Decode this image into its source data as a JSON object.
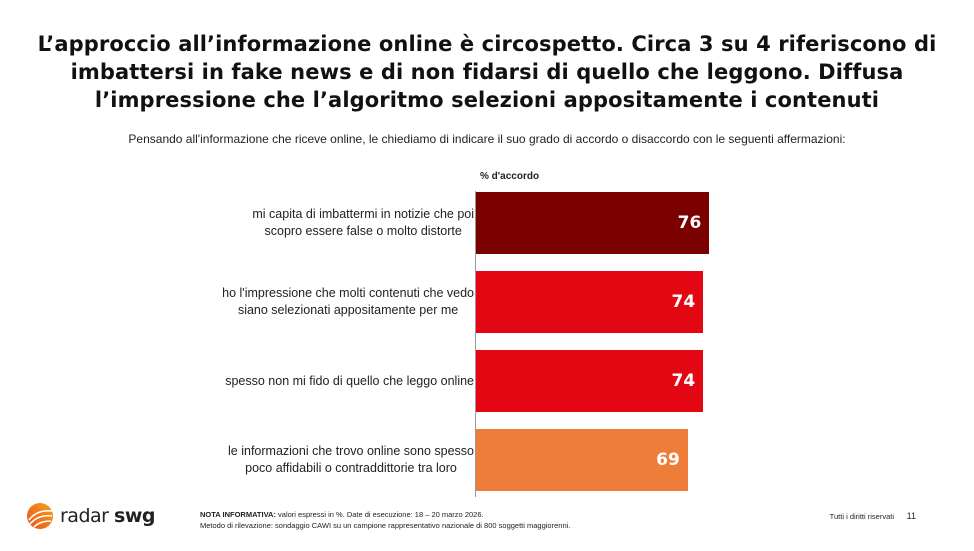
{
  "title": "L’approccio all’informazione online è circospetto. Circa 3 su 4 riferiscono di imbattersi in fake news e di non fidarsi di quello che leggono. Diffusa l’impressione che l’algoritmo selezioni appositamente i contenuti",
  "subtitle": "Pensando all'informazione che riceve online, le chiediamo di indicare il suo grado di accordo o disaccordo con le seguenti affermazioni:",
  "chart_data": {
    "type": "bar",
    "orientation": "horizontal",
    "column_header": "% d'accordo",
    "categories": [
      "mi capita di imbattermi in notizie che poi\nscopro essere false o molto distorte",
      "ho l'impressione che molti contenuti che vedo\nsiano selezionati appositamente per me",
      "spesso non mi fido di quello che leggo online",
      "le informazioni che trovo online sono spesso\npoco affidabili o contraddittorie tra loro"
    ],
    "values": [
      76,
      74,
      74,
      69
    ],
    "value_labels": [
      "76",
      "74",
      "74",
      "69"
    ],
    "colors": [
      "#7b0000",
      "#e30613",
      "#e30613",
      "#ef7d3a"
    ],
    "xlim": [
      0,
      100
    ]
  },
  "footer": {
    "logo_radar": "radar",
    "logo_swg": "swg",
    "note_label": "NOTA INFORMATIVA:",
    "note_text": " valori espressi in %. Date di esecuzione: 18 – 20 marzo 2026.",
    "method_text": "Metodo di rilevazione: sondaggio CAWI su un campione rappresentativo nazionale di 800 soggetti maggiorenni.",
    "rights": "Tutti i diritti riservati",
    "page_number": "11",
    "logo_colors": [
      "#e8501f",
      "#f7a21b"
    ]
  }
}
